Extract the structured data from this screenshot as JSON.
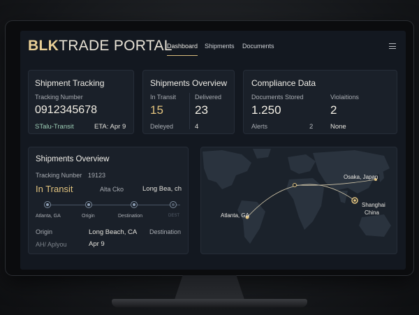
{
  "brand": {
    "part1": "BLK",
    "part2": "TRADE PORTAL"
  },
  "nav": {
    "links": [
      "Dashboard",
      "Shipments",
      "Documents"
    ]
  },
  "tracking_card": {
    "title": "Shipment Tracking",
    "number_label": "Tracking Number",
    "number": "0912345678",
    "status": "STalu-Transit",
    "eta": "ETA: Apr 9"
  },
  "overview_card": {
    "title": "Shipments Overview",
    "in_transit_label": "In Transit",
    "in_transit_value": "15",
    "delivered_label": "Delivered",
    "delivered_value": "23",
    "delayed_label": "Deleyed",
    "delayed_value": "4"
  },
  "compliance_card": {
    "title": "Compliance Data",
    "docs_label": "Documents Stored",
    "docs_value": "1.250",
    "violations_label": "Violaitions",
    "violations_value": "2",
    "alerts_label": "Alerts",
    "alerts_value": "2",
    "alerts_status": "None"
  },
  "detail_card": {
    "title": "Shipments Overview",
    "tracking_label": "Tracking Nunber",
    "tracking_value": "19123",
    "status": "In Transit",
    "carrier": "Alta Cko",
    "destination_short": "Long Bea, ch",
    "steps": [
      "Atlanta, GA",
      "Origin",
      "Destination",
      "DEST"
    ],
    "origin_label": "Origin",
    "origin_value": "Long Beach, CA",
    "destination_label": "Destination",
    "footer_label": "AH/ Aplyou",
    "footer_value": "Apr 9"
  },
  "map": {
    "atlanta": "Atlanta, GA",
    "osaka": "Osaka, Japan",
    "shanghai": "Shanghai",
    "china": "China"
  },
  "colors": {
    "accent": "#e3c47f",
    "background": "#131820",
    "card": "#1a2029"
  }
}
